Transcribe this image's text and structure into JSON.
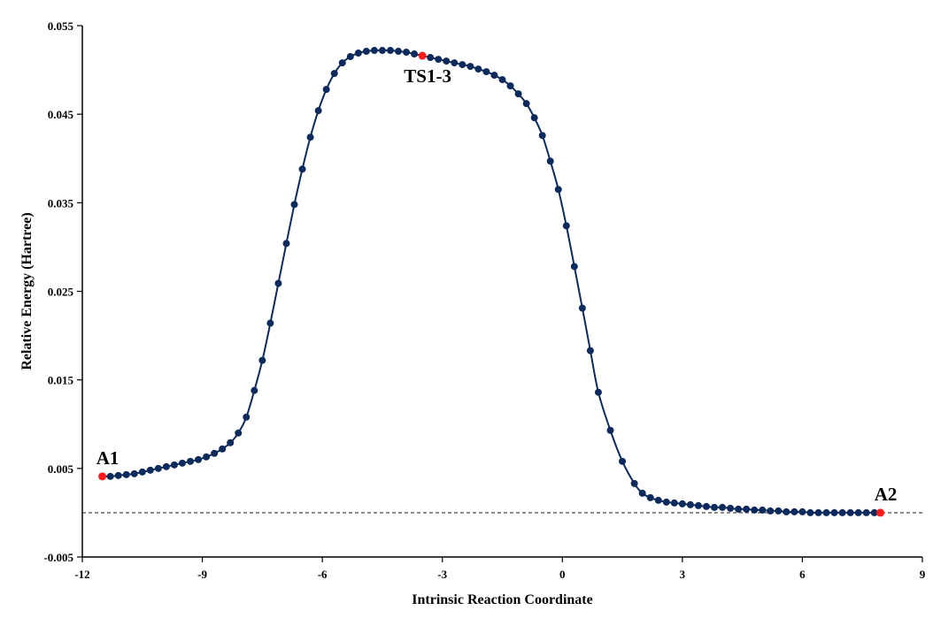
{
  "chart_data": {
    "type": "line",
    "title": "",
    "xlabel": "Intrinsic Reaction Coordinate",
    "ylabel": "Relative Energy (Hartree)",
    "xlim": [
      -12,
      9
    ],
    "ylim": [
      -0.005,
      0.055
    ],
    "x_ticks": [
      -12,
      -9,
      -6,
      -3,
      0,
      3,
      6,
      9
    ],
    "y_ticks": [
      -0.005,
      0.005,
      0.015,
      0.025,
      0.035,
      0.045,
      0.055
    ],
    "x_tick_labels": [
      "-12",
      "-9",
      "-6",
      "-3",
      "0",
      "3",
      "6",
      "9"
    ],
    "y_tick_labels": [
      "-0.005",
      "0.005",
      "0.015",
      "0.025",
      "0.035",
      "0.045",
      "0.055"
    ],
    "grid": false,
    "legend": "none",
    "reference_line": {
      "y": 0,
      "style": "dashed"
    },
    "colors": {
      "series": "#0d2a5c",
      "highlight": "#ff1a1a",
      "reference": "#333333"
    },
    "series": [
      {
        "x": [
          -11.5,
          -11.3,
          -11.1,
          -10.9,
          -10.7,
          -10.5,
          -10.3,
          -10.1,
          -9.9,
          -9.7,
          -9.5,
          -9.3,
          -9.1,
          -8.9,
          -8.7,
          -8.5,
          -8.3,
          -8.1,
          -7.9,
          -7.7,
          -7.5,
          -7.3,
          -7.1,
          -6.9,
          -6.7,
          -6.5,
          -6.3,
          -6.1,
          -5.9,
          -5.7,
          -5.5,
          -5.3,
          -5.1,
          -4.9,
          -4.7,
          -4.5,
          -4.3,
          -4.1,
          -3.9,
          -3.7,
          -3.5,
          -3.3,
          -3.1,
          -2.9,
          -2.7,
          -2.5,
          -2.3,
          -2.1,
          -1.9,
          -1.7,
          -1.5,
          -1.3,
          -1.1,
          -0.9,
          -0.7,
          -0.5,
          -0.3,
          -0.1,
          0.1,
          0.3,
          0.5,
          0.7,
          0.9,
          1.2,
          1.5,
          1.8,
          2.0,
          2.2,
          2.4,
          2.6,
          2.8,
          3.0,
          3.2,
          3.4,
          3.6,
          3.8,
          4.0,
          4.2,
          4.4,
          4.6,
          4.8,
          5.0,
          5.2,
          5.4,
          5.6,
          5.8,
          6.0,
          6.2,
          6.4,
          6.6,
          6.8,
          7.0,
          7.2,
          7.4,
          7.6,
          7.8,
          7.95
        ],
        "y": [
          0.0041,
          0.0041,
          0.0042,
          0.0043,
          0.0044,
          0.0046,
          0.0048,
          0.005,
          0.0052,
          0.0054,
          0.0056,
          0.0058,
          0.006,
          0.0063,
          0.0067,
          0.0072,
          0.0079,
          0.009,
          0.0108,
          0.0138,
          0.0172,
          0.0214,
          0.0259,
          0.0304,
          0.0348,
          0.0388,
          0.0424,
          0.0454,
          0.0478,
          0.0496,
          0.0508,
          0.0515,
          0.0519,
          0.0521,
          0.0522,
          0.0522,
          0.0522,
          0.0521,
          0.052,
          0.0518,
          0.0516,
          0.0514,
          0.0512,
          0.051,
          0.0508,
          0.0506,
          0.0504,
          0.0501,
          0.0498,
          0.0494,
          0.0489,
          0.0482,
          0.0473,
          0.0462,
          0.0446,
          0.0426,
          0.0397,
          0.0365,
          0.0324,
          0.0278,
          0.0231,
          0.0183,
          0.0136,
          0.0093,
          0.0058,
          0.0033,
          0.0022,
          0.0017,
          0.0014,
          0.0012,
          0.0011,
          0.001,
          0.0009,
          0.0008,
          0.0007,
          0.0006,
          0.0006,
          0.0005,
          0.0004,
          0.0004,
          0.0003,
          0.0003,
          0.0002,
          0.0002,
          0.0001,
          0.0001,
          0.0001,
          0.0,
          0.0,
          0.0,
          0.0,
          0.0,
          0.0,
          0.0,
          0.0,
          0.0,
          0.0
        ]
      }
    ],
    "annotations": [
      {
        "text": "A1",
        "x": -11.5,
        "y": 0.0041,
        "placement": "above"
      },
      {
        "text": "TS1-3",
        "x": -3.5,
        "y": 0.0522,
        "placement": "below"
      },
      {
        "text": "A2",
        "x": 7.95,
        "y": 0.0,
        "placement": "above"
      }
    ]
  }
}
